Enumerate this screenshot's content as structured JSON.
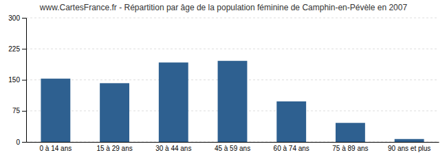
{
  "chart_data": {
    "type": "bar",
    "title": "www.CartesFrance.fr - Répartition par âge de la population féminine de Camphin-en-Pévèle en 2007",
    "categories": [
      "0 à 14 ans",
      "15 à 29 ans",
      "30 à 44 ans",
      "45 à 59 ans",
      "60 à 74 ans",
      "75 à 89 ans",
      "90 ans et plus"
    ],
    "values": [
      153,
      142,
      192,
      196,
      98,
      46,
      7
    ],
    "color": "#2e6090",
    "ylim": [
      0,
      300
    ],
    "yticks": [
      0,
      75,
      150,
      225,
      300
    ],
    "grid": true
  }
}
